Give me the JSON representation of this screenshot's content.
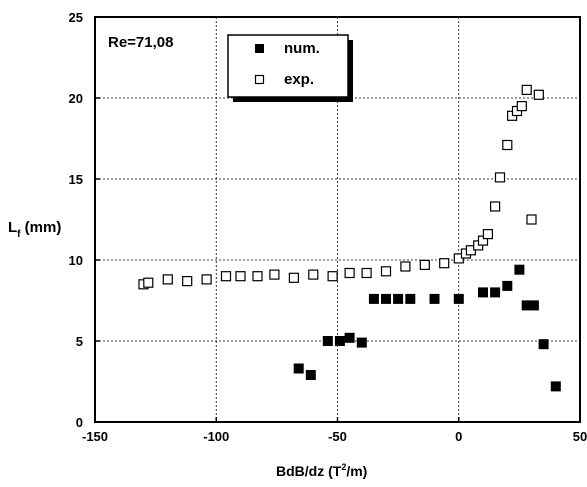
{
  "chart_data": {
    "type": "scatter",
    "annotation": "Re=71,08",
    "ylabel_main": "L",
    "ylabel_sub": "f",
    "ylabel_unit": " (mm)",
    "xlabel_main": "BdB/dz (T",
    "xlabel_sup": "2",
    "xlabel_end": "/m)",
    "xlim": [
      -150,
      40
    ],
    "ylim": [
      0,
      25
    ],
    "xticks": [
      -150,
      -100,
      -50,
      0,
      50
    ],
    "yticks": [
      0,
      5,
      10,
      15,
      20,
      25
    ],
    "grid": true,
    "legend_position": "top-left",
    "series": [
      {
        "name": "num.",
        "marker": "filled-square",
        "color": "#000000",
        "x": [
          -66,
          -61,
          -54,
          -49,
          -45,
          -40,
          -35,
          -30,
          -25,
          -20,
          -10,
          0,
          10,
          15,
          20,
          25,
          28,
          31,
          35,
          40
        ],
        "y": [
          3.3,
          2.9,
          5.0,
          5.0,
          5.2,
          4.9,
          7.6,
          7.6,
          7.6,
          7.6,
          7.6,
          7.6,
          8.0,
          8.0,
          8.4,
          9.4,
          7.2,
          7.2,
          4.8,
          2.2
        ]
      },
      {
        "name": "exp.",
        "marker": "open-square",
        "color": "#000000",
        "x": [
          -130,
          -128,
          -120,
          -112,
          -104,
          -96,
          -90,
          -83,
          -76,
          -68,
          -60,
          -52,
          -45,
          -38,
          -30,
          -22,
          -14,
          -6,
          0,
          3,
          5,
          8,
          10,
          12,
          15,
          17,
          20,
          22,
          24,
          26,
          28,
          30,
          33
        ],
        "y": [
          8.5,
          8.6,
          8.8,
          8.7,
          8.8,
          9.0,
          9.0,
          9.0,
          9.1,
          8.9,
          9.1,
          9.0,
          9.2,
          9.2,
          9.3,
          9.6,
          9.7,
          9.8,
          10.1,
          10.4,
          10.6,
          10.9,
          11.2,
          11.6,
          13.3,
          15.1,
          17.1,
          18.9,
          19.2,
          19.5,
          20.5,
          12.5,
          20.2
        ]
      }
    ]
  }
}
